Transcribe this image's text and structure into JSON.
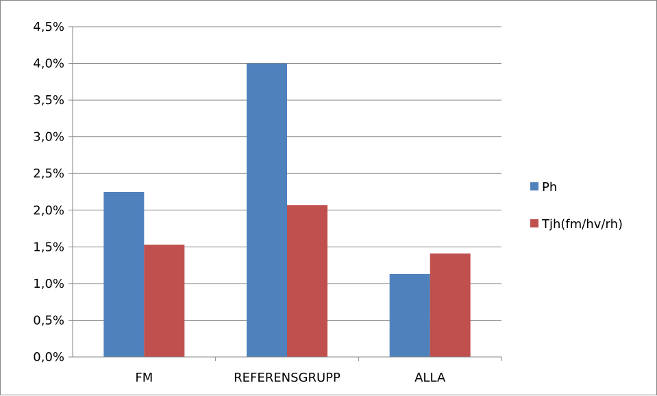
{
  "chart_data": {
    "type": "bar",
    "title": "",
    "xlabel": "",
    "ylabel": "",
    "categories": [
      "FM",
      "REFERENSGRUPP",
      "ALLA"
    ],
    "series": [
      {
        "name": "Ph",
        "color": "#4f81bd",
        "values": [
          2.25,
          4.0,
          1.13
        ]
      },
      {
        "name": "Tjh(fm/hv/rh)",
        "color": "#c0504d",
        "values": [
          1.53,
          2.07,
          1.41
        ]
      }
    ],
    "ylim": [
      0,
      4.5
    ],
    "yticks": [
      0,
      0.5,
      1.0,
      1.5,
      2.0,
      2.5,
      3.0,
      3.5,
      4.0,
      4.5
    ],
    "ytick_labels": [
      "0,0%",
      "0,5%",
      "1,0%",
      "1,5%",
      "2,0%",
      "2,5%",
      "3,0%",
      "3,5%",
      "4,0%",
      "4,5%"
    ],
    "grid": true,
    "legend_position": "right"
  }
}
